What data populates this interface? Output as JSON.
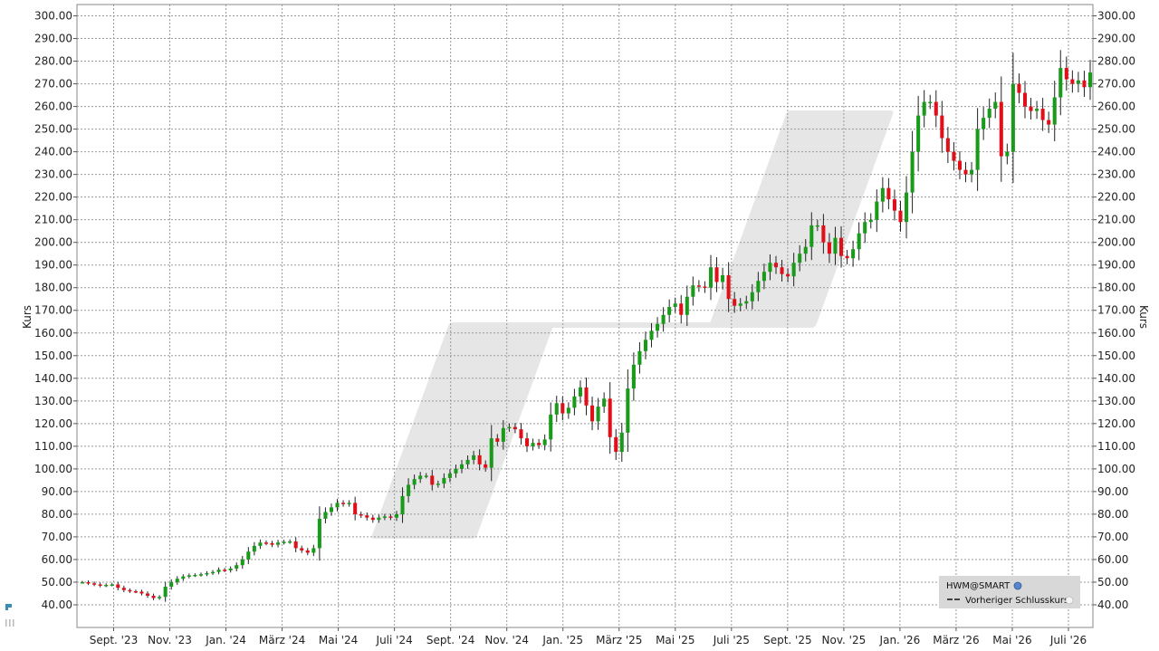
{
  "chart_data": {
    "type": "candlestick",
    "xlabel": "",
    "ylabel": "Kurs",
    "ylabel_right": "Kurs",
    "ylim": [
      30,
      305
    ],
    "y_ticks": [
      "40.00",
      "50.00",
      "60.00",
      "70.00",
      "80.00",
      "90.00",
      "100.00",
      "110.00",
      "120.00",
      "130.00",
      "140.00",
      "150.00",
      "160.00",
      "170.00",
      "180.00",
      "190.00",
      "200.00",
      "210.00",
      "220.00",
      "230.00",
      "240.00",
      "250.00",
      "260.00",
      "270.00",
      "280.00",
      "290.00",
      "300.00"
    ],
    "x_ticks": [
      "Sept. '23",
      "Nov. '23",
      "Jan. '24",
      "März '24",
      "Mai '24",
      "Juli '24",
      "Sept. '24",
      "Nov. '24",
      "Jan. '25",
      "März '25",
      "Mai '25",
      "Juli '25",
      "Sept. '25",
      "Nov. '25",
      "Jan. '26",
      "März '26",
      "Mai '26",
      "Juli '26"
    ],
    "grid": true,
    "legend_position": "bottom-right",
    "legend": {
      "symbol": "HWM@SMART",
      "items": [
        "Vorheriger Schlusskurs"
      ]
    },
    "colors": {
      "up": "#1a9a1a",
      "down": "#e0101a",
      "wick": "#222222",
      "grid": "#9a9a9a"
    },
    "close": [
      50,
      49.5,
      49,
      48.5,
      48.8,
      49,
      47.5,
      46.5,
      46,
      45.8,
      45,
      44,
      43,
      43.5,
      48,
      50,
      51.5,
      52.5,
      53,
      53.2,
      53.5,
      54,
      54.5,
      55.5,
      55.2,
      56,
      57.5,
      60,
      63.5,
      66,
      67.5,
      67.2,
      66.5,
      67.5,
      67.8,
      68,
      65,
      64,
      63,
      65,
      78,
      81,
      83,
      85,
      84.5,
      85,
      80,
      79.5,
      78.5,
      77.5,
      78.5,
      79,
      78.5,
      80,
      88,
      93,
      95.5,
      97,
      97,
      93,
      93.5,
      96,
      98,
      100,
      102,
      104,
      106,
      102,
      100.5,
      113.5,
      112,
      118,
      118.5,
      117.5,
      113.5,
      110,
      111.5,
      110.5,
      113,
      124,
      129,
      124.5,
      127,
      132,
      136,
      128,
      121,
      127.5,
      131,
      114,
      107.5,
      116,
      135.5,
      146,
      152,
      157,
      161,
      164,
      168,
      171.5,
      173,
      168,
      176,
      181,
      180.5,
      180,
      189,
      182.5,
      185.5,
      175,
      172,
      173,
      174,
      178,
      183,
      187,
      191,
      189,
      186,
      185,
      191,
      195,
      198,
      207.5,
      207.5,
      200,
      195,
      202,
      194,
      193,
      197,
      204,
      209,
      210,
      218,
      224,
      219,
      214,
      209,
      222,
      240,
      256,
      262,
      262,
      256,
      246,
      240,
      236,
      232,
      230,
      232,
      250,
      255,
      259,
      262,
      238,
      240,
      270,
      266,
      260,
      258,
      259,
      254,
      252,
      264,
      277,
      272,
      270,
      271.5,
      268.5,
      275
    ]
  }
}
